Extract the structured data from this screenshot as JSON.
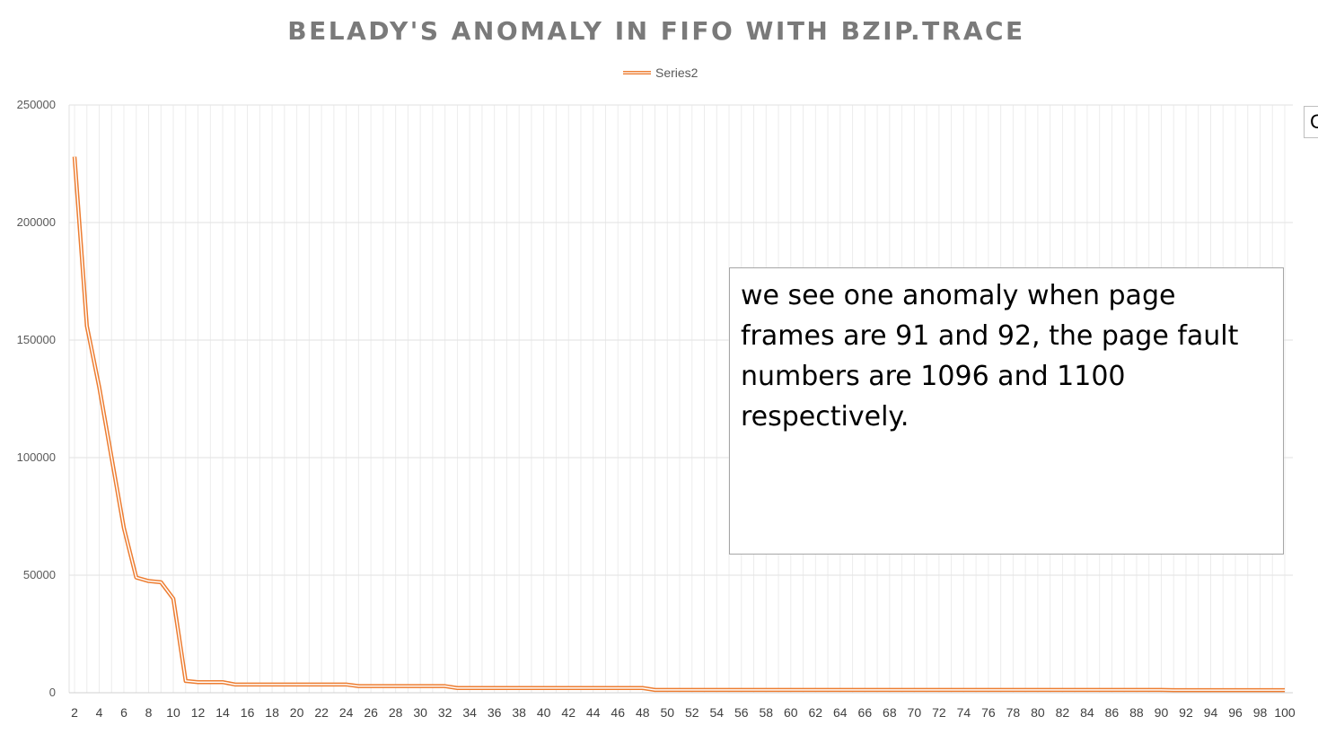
{
  "chart_data": {
    "type": "line",
    "title": "BELADY'S ANOMALY IN FIFO WITH BZIP.TRACE",
    "xlabel": "",
    "ylabel": "",
    "legend": {
      "position": "top",
      "entries": [
        "Series2"
      ]
    },
    "grid": {
      "horizontal": true,
      "vertical": true
    },
    "ylim": [
      0,
      250000
    ],
    "yticks": [
      0,
      50000,
      100000,
      150000,
      200000,
      250000
    ],
    "ytick_labels": [
      "0",
      "50000",
      "100000",
      "150000",
      "200000",
      "250000"
    ],
    "xtick_labels": [
      "2",
      "4",
      "6",
      "8",
      "10",
      "12",
      "14",
      "16",
      "18",
      "20",
      "22",
      "24",
      "26",
      "28",
      "30",
      "32",
      "34",
      "36",
      "38",
      "40",
      "42",
      "44",
      "46",
      "48",
      "50",
      "52",
      "54",
      "56",
      "58",
      "60",
      "62",
      "64",
      "66",
      "68",
      "70",
      "72",
      "74",
      "76",
      "78",
      "80",
      "82",
      "84",
      "86",
      "88",
      "90",
      "92",
      "94",
      "96",
      "98",
      "100"
    ],
    "x": [
      2,
      3,
      4,
      5,
      6,
      7,
      8,
      9,
      10,
      11,
      12,
      13,
      14,
      15,
      16,
      17,
      18,
      19,
      20,
      21,
      22,
      23,
      24,
      25,
      26,
      27,
      28,
      29,
      30,
      31,
      32,
      33,
      34,
      35,
      36,
      37,
      38,
      39,
      40,
      41,
      42,
      43,
      44,
      45,
      46,
      47,
      48,
      49,
      50,
      51,
      52,
      53,
      54,
      55,
      56,
      57,
      58,
      59,
      60,
      61,
      62,
      63,
      64,
      65,
      66,
      67,
      68,
      69,
      70,
      71,
      72,
      73,
      74,
      75,
      76,
      77,
      78,
      79,
      80,
      81,
      82,
      83,
      84,
      85,
      86,
      87,
      88,
      89,
      90,
      91,
      92,
      93,
      94,
      95,
      96,
      97,
      98,
      99,
      100
    ],
    "series": [
      {
        "name": "Series2",
        "color": "#ed7d31",
        "values": [
          228000,
          156000,
          130000,
          100000,
          70000,
          49000,
          47500,
          47000,
          40000,
          5000,
          4500,
          4500,
          4500,
          3500,
          3500,
          3500,
          3500,
          3500,
          3500,
          3500,
          3500,
          3500,
          3500,
          2800,
          2800,
          2800,
          2800,
          2800,
          2800,
          2800,
          2800,
          2000,
          2000,
          2000,
          2000,
          2000,
          2000,
          2000,
          2000,
          2000,
          2000,
          2000,
          2000,
          2000,
          2000,
          2000,
          2000,
          1200,
          1200,
          1200,
          1200,
          1200,
          1200,
          1200,
          1200,
          1200,
          1200,
          1200,
          1200,
          1200,
          1200,
          1200,
          1200,
          1200,
          1200,
          1200,
          1200,
          1200,
          1200,
          1200,
          1200,
          1200,
          1200,
          1200,
          1200,
          1200,
          1200,
          1200,
          1200,
          1200,
          1200,
          1200,
          1200,
          1200,
          1200,
          1200,
          1200,
          1200,
          1200,
          1096,
          1100,
          1100,
          1100,
          1100,
          1100,
          1100,
          1100,
          1100,
          1100
        ]
      }
    ],
    "annotations": [
      {
        "text": "we see one anomaly when page frames are 91 and 92, the page fault numbers are 1096 and 1100 respectively."
      }
    ]
  }
}
